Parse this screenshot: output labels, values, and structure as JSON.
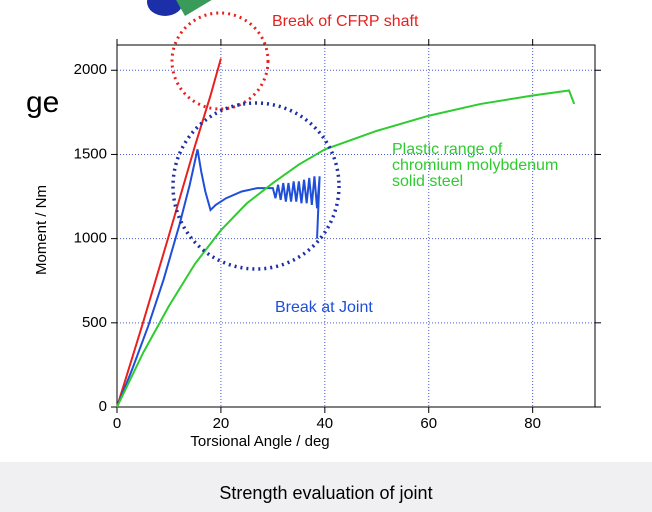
{
  "chart_data": {
    "type": "line",
    "fragment_text": "ge",
    "caption": "Strength evaluation of joint",
    "xlabel": "Torsional Angle / deg",
    "ylabel": "Moment / Nm",
    "annotations": [
      "Break of CFRP shaft",
      "Plastic range of",
      "chromium molybdenum",
      "solid steel",
      "Break at Joint"
    ],
    "xlim": [
      0,
      92
    ],
    "ylim": [
      0,
      2150
    ],
    "xticks": [
      0,
      20,
      40,
      60,
      80
    ],
    "yticks": [
      0,
      500,
      1000,
      1500,
      2000
    ],
    "grid": true,
    "series": [
      {
        "color": "#e8201e",
        "x": [
          0,
          5,
          10,
          15,
          18,
          20
        ],
        "values": [
          0,
          500,
          1020,
          1550,
          1850,
          2070
        ]
      },
      {
        "color": "#1f4fd8",
        "x": [
          0,
          3,
          6,
          9,
          12,
          14,
          15.5,
          16.2,
          17,
          18,
          19,
          21,
          24,
          27,
          30,
          30.5,
          31,
          31.5,
          32,
          32.5,
          33,
          33.5,
          34,
          34.5,
          35,
          35.5,
          36,
          36.5,
          37,
          37.5,
          38,
          38.5,
          39,
          38.5
        ],
        "values": [
          0,
          230,
          480,
          760,
          1080,
          1320,
          1530,
          1400,
          1280,
          1170,
          1200,
          1240,
          1280,
          1300,
          1300,
          1240,
          1320,
          1230,
          1330,
          1220,
          1330,
          1220,
          1340,
          1220,
          1340,
          1210,
          1350,
          1210,
          1360,
          1200,
          1370,
          1180,
          1370,
          1000
        ]
      },
      {
        "color": "#2ecc2e",
        "x": [
          0,
          5,
          10,
          15,
          20,
          25,
          30,
          35,
          40,
          50,
          60,
          70,
          80,
          87,
          88
        ],
        "values": [
          0,
          320,
          600,
          850,
          1050,
          1210,
          1330,
          1440,
          1530,
          1640,
          1730,
          1800,
          1850,
          1880,
          1800
        ]
      }
    ]
  }
}
